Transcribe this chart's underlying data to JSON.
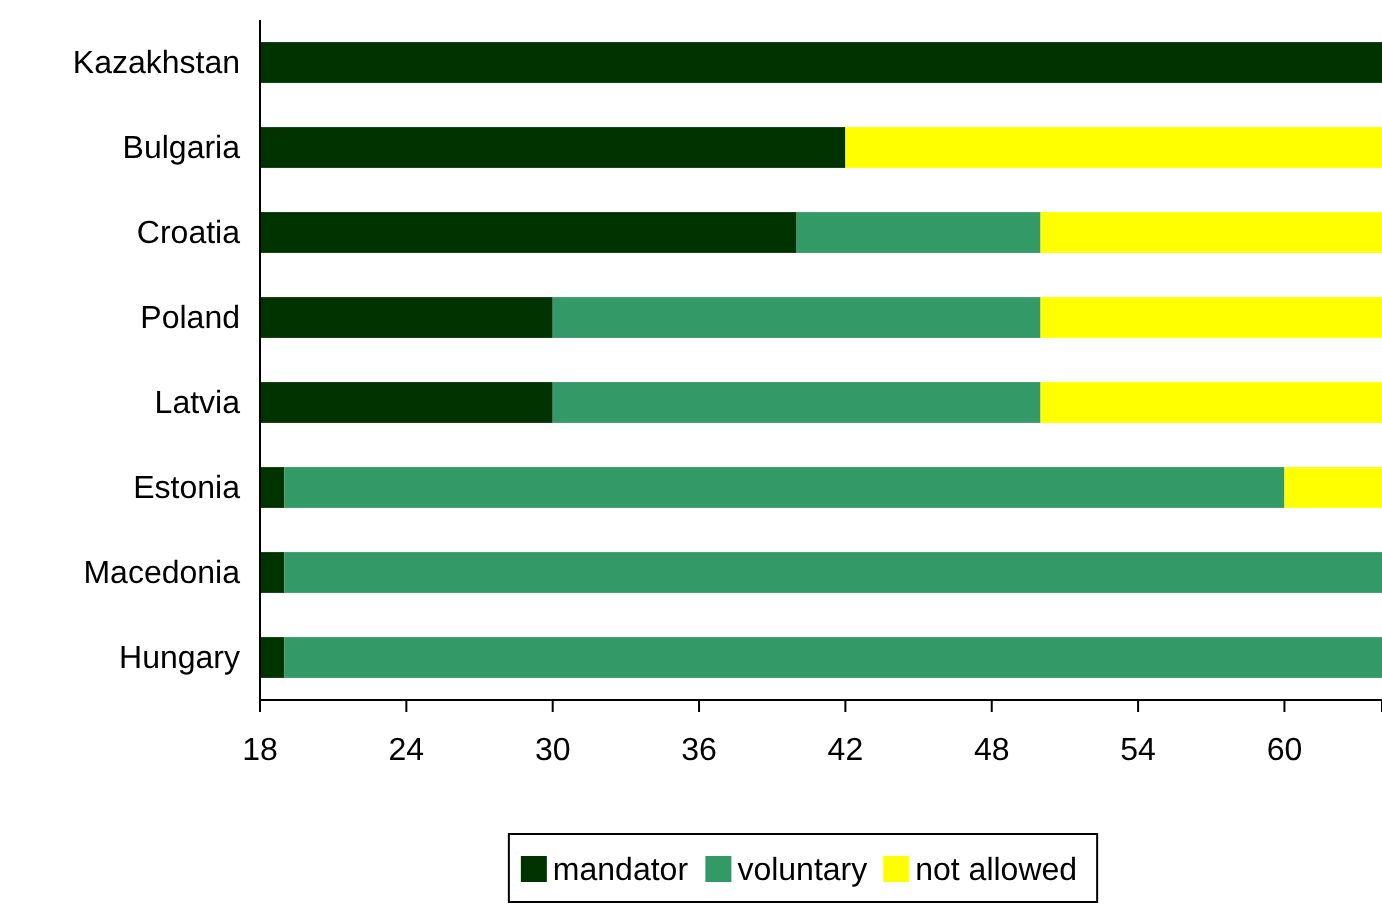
{
  "chart_data": {
    "type": "bar",
    "orientation": "horizontal",
    "categories": [
      "Kazakhstan",
      "Bulgaria",
      "Croatia",
      "Poland",
      "Latvia",
      "Estonia",
      "Macedonia",
      "Hungary"
    ],
    "series": [
      {
        "name": "mandator",
        "color": "#003300",
        "base": [
          18,
          18,
          18,
          18,
          18,
          18,
          18,
          18
        ],
        "values": [
          46,
          24,
          22,
          12,
          12,
          1,
          1,
          1
        ]
      },
      {
        "name": "voluntary",
        "color": "#339966",
        "base": [
          null,
          null,
          40,
          30,
          30,
          19,
          19,
          19
        ],
        "values": [
          null,
          null,
          10,
          20,
          20,
          41,
          45,
          45
        ]
      },
      {
        "name": "not allowed",
        "color": "#ffff00",
        "base": [
          null,
          42,
          50,
          50,
          50,
          60,
          null,
          null
        ],
        "values": [
          null,
          22,
          14,
          14,
          14,
          4,
          null,
          null
        ]
      }
    ],
    "xlim": [
      18,
      64
    ],
    "xticks": [
      18,
      24,
      30,
      36,
      42,
      48,
      54,
      60
    ],
    "grid": false,
    "legend": "bottom"
  }
}
